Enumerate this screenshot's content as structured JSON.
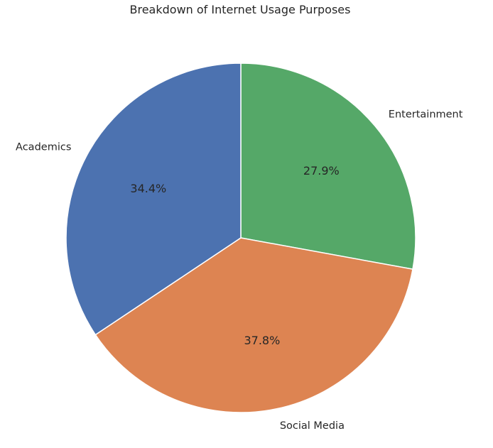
{
  "chart_data": {
    "type": "pie",
    "title": "Breakdown of Internet Usage Purposes",
    "categories": [
      "Entertainment",
      "Social Media",
      "Academics"
    ],
    "values": [
      27.9,
      37.8,
      34.4
    ],
    "percent_labels": [
      "27.9%",
      "37.8%",
      "34.4%"
    ],
    "colors": [
      "#55a868",
      "#dd8452",
      "#4c72b0"
    ],
    "start_angle_deg": 90,
    "direction": "clockwise",
    "legend": "none"
  }
}
